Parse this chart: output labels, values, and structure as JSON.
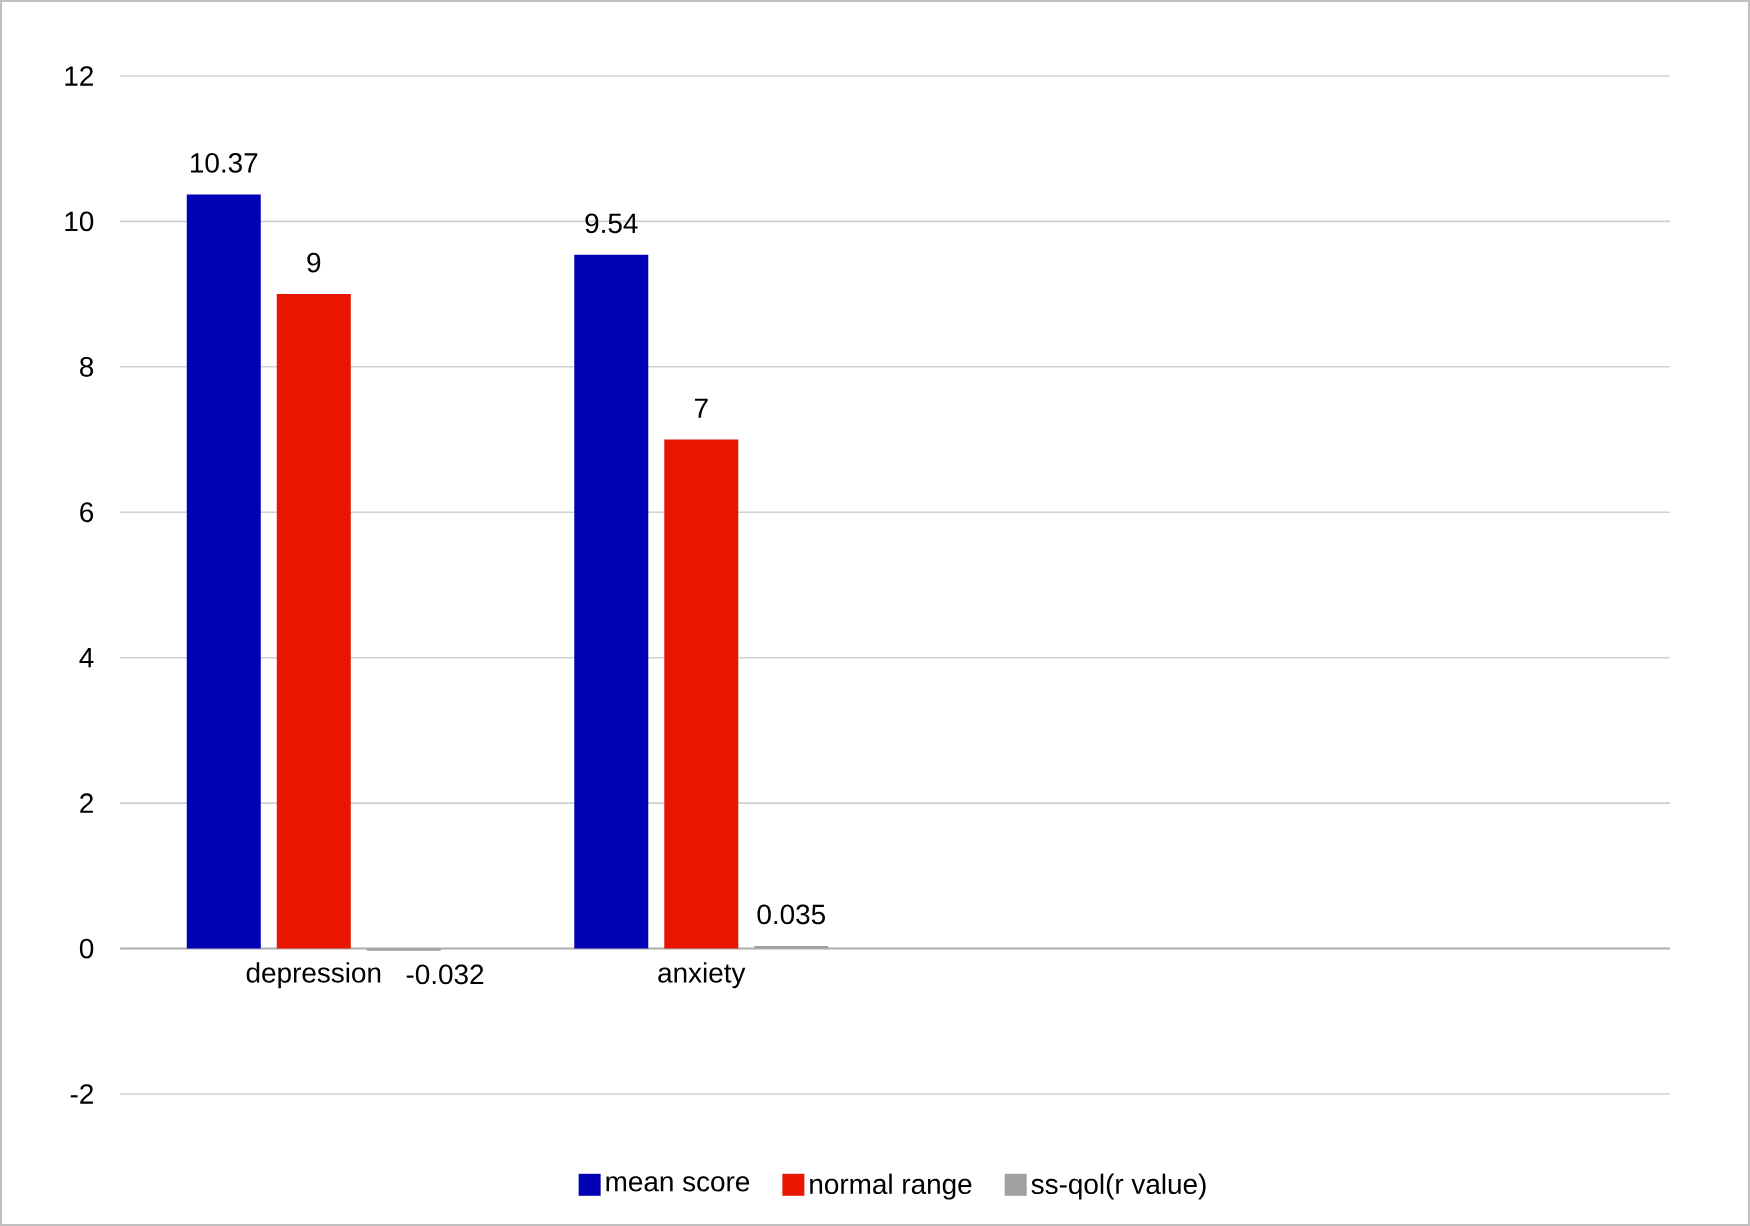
{
  "chart_data": {
    "type": "bar",
    "categories": [
      "depression",
      "anxiety",
      null,
      null
    ],
    "series": [
      {
        "name": "mean score",
        "color": "#0000b4",
        "values": [
          10.37,
          9.54,
          null,
          null
        ]
      },
      {
        "name": "normal range",
        "color": "#e81500",
        "values": [
          9,
          7,
          null,
          null
        ]
      },
      {
        "name": "ss-qol(r value)",
        "color": "#a0a0a0",
        "values": [
          -0.032,
          0.035,
          null,
          null
        ]
      }
    ],
    "ylim": [
      -2,
      12
    ],
    "yticks": [
      -2,
      0,
      2,
      4,
      6,
      8,
      10,
      12
    ],
    "grid": "y",
    "legend": "bottom",
    "data_labels": true
  }
}
